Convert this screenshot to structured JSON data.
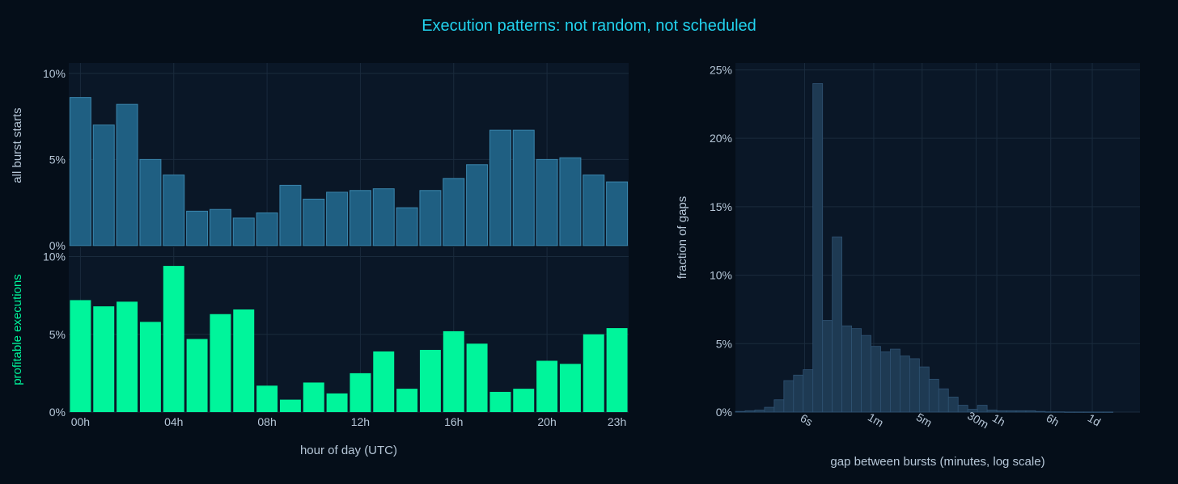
{
  "title": "Execution patterns: not random, not scheduled",
  "colors": {
    "background": "#050e19",
    "panel": "#0a1727",
    "grid": "#1a2b3d",
    "title": "#22d3ee",
    "tick": "#b6c7d8",
    "bar_all": "#1f5f82",
    "bar_all_edge": "#3b86ad",
    "bar_profit": "#00f59b",
    "bar_gap": "#1e3a53",
    "bar_gap_edge": "#2f5272",
    "profit_label": "#00f59b"
  },
  "chart_data": [
    {
      "type": "bar",
      "ylabel": "all burst starts",
      "x": [
        0,
        1,
        2,
        3,
        4,
        5,
        6,
        7,
        8,
        9,
        10,
        11,
        12,
        13,
        14,
        15,
        16,
        17,
        18,
        19,
        20,
        21,
        22,
        23
      ],
      "values": [
        8.6,
        7.0,
        8.2,
        5.0,
        4.1,
        2.0,
        2.1,
        1.6,
        1.9,
        3.5,
        2.7,
        3.1,
        3.2,
        3.3,
        2.2,
        3.2,
        3.9,
        4.7,
        6.7,
        6.7,
        5.0,
        5.1,
        4.1,
        3.7
      ],
      "unit": "%",
      "ylim": [
        0,
        10.6
      ],
      "yticks": [
        0,
        5,
        10
      ],
      "ytick_labels": [
        "0%",
        "5%",
        "10%"
      ],
      "grid": true
    },
    {
      "type": "bar",
      "ylabel": "profitable executions",
      "xlabel": "hour of day (UTC)",
      "x": [
        0,
        1,
        2,
        3,
        4,
        5,
        6,
        7,
        8,
        9,
        10,
        11,
        12,
        13,
        14,
        15,
        16,
        17,
        18,
        19,
        20,
        21,
        22,
        23
      ],
      "values": [
        7.2,
        6.8,
        7.1,
        5.8,
        9.4,
        4.7,
        6.3,
        6.6,
        1.7,
        0.8,
        1.9,
        1.2,
        2.5,
        3.9,
        1.5,
        4.0,
        5.2,
        4.4,
        1.3,
        1.5,
        3.3,
        3.1,
        5.0,
        5.4
      ],
      "unit": "%",
      "ylim": [
        0,
        10.6
      ],
      "yticks": [
        0,
        5,
        10
      ],
      "ytick_labels": [
        "0%",
        "5%",
        "10%"
      ],
      "xticks": [
        0,
        4,
        8,
        12,
        16,
        20,
        23
      ],
      "xtick_labels": [
        "00h",
        "04h",
        "08h",
        "12h",
        "16h",
        "20h",
        "23h"
      ],
      "grid": true
    },
    {
      "type": "bar",
      "subtype": "histogram",
      "xlabel": "gap between bursts (minutes, log scale)",
      "ylabel": "fraction of gaps",
      "x_scale": "log",
      "unit": "%",
      "bin_left_log10_minutes": [
        -2.0,
        -1.86,
        -1.72,
        -1.58,
        -1.44,
        -1.3,
        -1.16,
        -1.02,
        -0.88,
        -0.74,
        -0.6,
        -0.46,
        -0.32,
        -0.18,
        -0.04,
        0.1,
        0.24,
        0.38,
        0.52,
        0.66,
        0.8,
        0.94,
        1.08,
        1.22,
        1.36,
        1.5,
        1.64,
        1.78,
        1.92,
        2.06,
        2.2,
        2.34,
        2.48,
        2.62,
        2.76,
        2.9,
        3.04,
        3.18,
        3.32
      ],
      "bin_width_log10": 0.14,
      "values": [
        0.05,
        0.1,
        0.15,
        0.35,
        0.9,
        2.3,
        2.7,
        3.1,
        24.0,
        6.7,
        12.8,
        6.3,
        6.1,
        5.6,
        4.8,
        4.4,
        4.6,
        4.1,
        3.9,
        3.3,
        2.4,
        1.7,
        1.1,
        0.5,
        0.2,
        0.5,
        0.15,
        0.1,
        0.1,
        0.1,
        0.1,
        0.05,
        0.02,
        0.02,
        0.01,
        0.01,
        0.01,
        0.01,
        0.01
      ],
      "xlim_log10": [
        -2.0,
        3.85
      ],
      "ylim": [
        0,
        25.5
      ],
      "yticks": [
        0,
        5,
        10,
        15,
        20,
        25
      ],
      "ytick_labels": [
        "0%",
        "5%",
        "10%",
        "15%",
        "20%",
        "25%"
      ],
      "xticks_log10": [
        -1.0,
        0.0,
        0.7,
        1.48,
        1.78,
        2.56,
        3.16
      ],
      "xtick_labels": [
        "6s",
        "1m",
        "5m",
        "30m",
        "1h",
        "6h",
        "1d"
      ],
      "grid": true
    }
  ]
}
